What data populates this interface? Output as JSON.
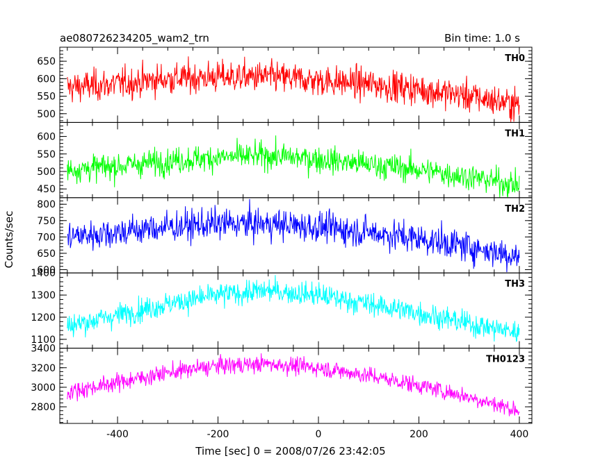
{
  "chart_data": {
    "type": "line",
    "title": "ae080726234205_wam2_trn",
    "bin_time_label": "Bin time: 1.0 s",
    "xlabel": "Time [sec] 0 = 2008/07/26 23:42:05",
    "ylabel": "Counts/sec",
    "xlim": [
      -515,
      425
    ],
    "x_ticks": [
      -400,
      -200,
      0,
      200,
      400
    ],
    "grid": false,
    "panels": [
      {
        "name": "TH0",
        "color": "#ff0000",
        "ylim": [
          475,
          690
        ],
        "y_ticks": [
          500,
          550,
          600,
          650
        ],
        "noise": 38,
        "trend_x": [
          -500,
          -400,
          -300,
          -200,
          -100,
          0,
          100,
          200,
          300,
          400
        ],
        "trend_y": [
          575,
          585,
          600,
          605,
          605,
          595,
          585,
          570,
          550,
          525
        ]
      },
      {
        "name": "TH1",
        "color": "#00ff00",
        "ylim": [
          425,
          640
        ],
        "y_ticks": [
          450,
          500,
          550,
          600
        ],
        "noise": 32,
        "trend_x": [
          -500,
          -400,
          -300,
          -200,
          -100,
          0,
          100,
          200,
          300,
          400
        ],
        "trend_y": [
          505,
          515,
          530,
          540,
          545,
          535,
          520,
          505,
          485,
          460
        ]
      },
      {
        "name": "TH2",
        "color": "#0000ff",
        "ylim": [
          590,
          820
        ],
        "y_ticks": [
          600,
          650,
          700,
          750,
          800
        ],
        "noise": 40,
        "trend_x": [
          -500,
          -400,
          -300,
          -200,
          -100,
          0,
          100,
          200,
          300,
          400
        ],
        "trend_y": [
          700,
          715,
          730,
          740,
          740,
          730,
          715,
          695,
          670,
          640
        ]
      },
      {
        "name": "TH3",
        "color": "#00ffff",
        "ylim": [
          1060,
          1400
        ],
        "y_ticks": [
          1100,
          1200,
          1300,
          1400
        ],
        "noise": 45,
        "trend_x": [
          -500,
          -400,
          -300,
          -200,
          -100,
          0,
          100,
          200,
          300,
          400
        ],
        "trend_y": [
          1160,
          1210,
          1260,
          1300,
          1320,
          1300,
          1260,
          1220,
          1170,
          1130
        ]
      },
      {
        "name": "TH0123",
        "color": "#ff00ff",
        "ylim": [
          2630,
          3400
        ],
        "y_ticks": [
          2800,
          3000,
          3200,
          3400
        ],
        "noise": 75,
        "trend_x": [
          -500,
          -400,
          -300,
          -200,
          -100,
          0,
          100,
          200,
          300,
          400
        ],
        "trend_y": [
          2950,
          3050,
          3150,
          3220,
          3240,
          3200,
          3120,
          3020,
          2900,
          2760
        ]
      }
    ]
  }
}
